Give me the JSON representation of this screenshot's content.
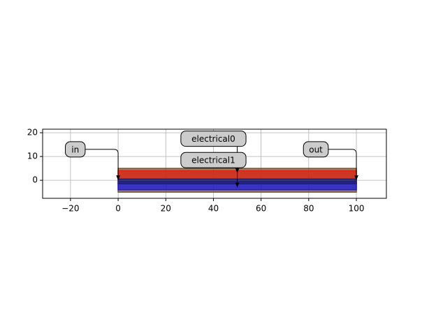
{
  "chart_data": {
    "type": "layout",
    "xlim": [
      -31.7,
      112.6
    ],
    "ylim": [
      -7.6,
      21.5
    ],
    "xticks": [
      {
        "value": -20,
        "label": "−20"
      },
      0,
      20,
      40,
      60,
      80,
      100
    ],
    "yticks": [
      0,
      10,
      20
    ],
    "grid": true,
    "layers": [
      {
        "color": "#7a5230",
        "x": [
          0,
          100
        ],
        "y": [
          -5,
          5
        ]
      },
      {
        "color": "#e02010",
        "x": [
          0,
          100
        ],
        "y": [
          0.5,
          4
        ]
      },
      {
        "color": "#1a1ae0",
        "x": [
          0,
          100
        ],
        "y": [
          -4,
          -0.5
        ]
      },
      {
        "color": "#202070",
        "x": [
          0,
          100
        ],
        "y": [
          -1.5,
          0.5
        ]
      }
    ],
    "annotations": [
      {
        "text": "in",
        "xy": [
          0,
          0
        ],
        "text_xy": [
          -18,
          13
        ]
      },
      {
        "text": "electrical0",
        "xy": [
          50,
          3
        ],
        "text_xy": [
          40,
          17.5
        ]
      },
      {
        "text": "electrical1",
        "xy": [
          50,
          -3
        ],
        "text_xy": [
          40,
          8.5
        ]
      },
      {
        "text": "out",
        "xy": [
          100,
          0
        ],
        "text_xy": [
          83,
          13
        ]
      }
    ]
  }
}
